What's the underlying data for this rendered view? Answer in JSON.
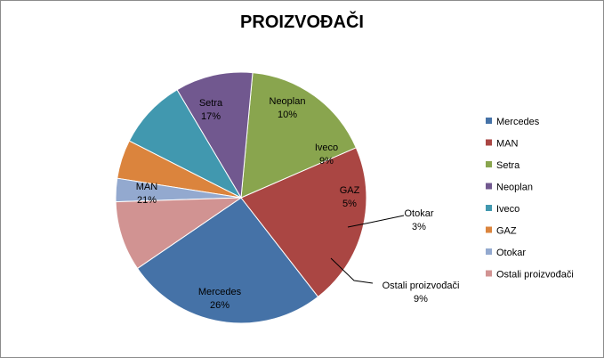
{
  "chart_data": {
    "type": "pie",
    "title": "PROIZVOĐAČI",
    "start_angle_deg": 145.7,
    "slices": [
      {
        "name": "Mercedes",
        "value": 26,
        "label": "26%",
        "color": "#4572A7"
      },
      {
        "name": "MAN",
        "value": 21,
        "label": "21%",
        "color": "#AA4643"
      },
      {
        "name": "Setra",
        "value": 17,
        "label": "17%",
        "color": "#89A54E"
      },
      {
        "name": "Neoplan",
        "value": 10,
        "label": "10%",
        "color": "#71588F"
      },
      {
        "name": "Iveco",
        "value": 9,
        "label": "9%",
        "color": "#4198AF"
      },
      {
        "name": "GAZ",
        "value": 5,
        "label": "5%",
        "color": "#DB843D"
      },
      {
        "name": "Otokar",
        "value": 3,
        "label": "3%",
        "color": "#93A9CF"
      },
      {
        "name": "Ostali proizvođači",
        "value": 9,
        "label": "9%",
        "color": "#D19392"
      }
    ],
    "legend_position": "right"
  }
}
